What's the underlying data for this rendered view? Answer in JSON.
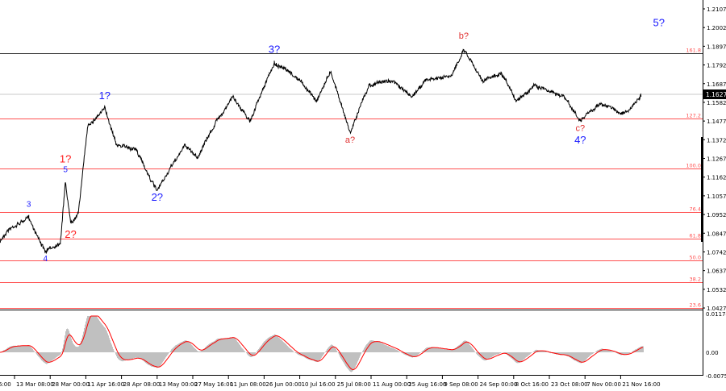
{
  "chart_data": {
    "type": "line",
    "current_price": "1.1627",
    "y_ticks": [
      "1.2107",
      "1.2002",
      "1.1897",
      "1.1792",
      "1.1687",
      "1.1582",
      "1.1477",
      "1.1372",
      "1.1267",
      "1.1162",
      "1.1057",
      "1.0952",
      "1.0847",
      "1.0742",
      "1.0637",
      "1.0532",
      "1.0427"
    ],
    "ylim": [
      1.0427,
      1.2107
    ],
    "x_ticks": [
      {
        "label": "6:00",
        "date": "2020-02-26"
      },
      {
        "label": "13 Mar 08:00",
        "date": "2020-03-13"
      },
      {
        "label": "28 Mar 00:00",
        "date": "2020-03-28"
      },
      {
        "label": "11 Apr 16:00",
        "date": "2020-04-11"
      },
      {
        "label": "28 Apr 08:00",
        "date": "2020-04-28"
      },
      {
        "label": "13 May 00:00",
        "date": "2020-05-13"
      },
      {
        "label": "27 May 16:00",
        "date": "2020-05-27"
      },
      {
        "label": "11 Jun 08:00",
        "date": "2020-06-11"
      },
      {
        "label": "26 Jun 00:00",
        "date": "2020-06-26"
      },
      {
        "label": "10 Jul 16:00",
        "date": "2020-07-10"
      },
      {
        "label": "25 Jul 08:00",
        "date": "2020-07-25"
      },
      {
        "label": "11 Aug 00:00",
        "date": "2020-08-11"
      },
      {
        "label": "25 Aug 16:00",
        "date": "2020-08-25"
      },
      {
        "label": "9 Sep 08:00",
        "date": "2020-09-09"
      },
      {
        "label": "24 Sep 00:00",
        "date": "2020-09-24"
      },
      {
        "label": "8 Oct 16:00",
        "date": "2020-10-08"
      },
      {
        "label": "23 Oct 08:00",
        "date": "2020-10-23"
      },
      {
        "label": "7 Nov 00:00",
        "date": "2020-11-07"
      },
      {
        "label": "21 Nov 16:00",
        "date": "2020-11-21"
      }
    ],
    "price_path": [
      [
        "2020-03-07",
        1.0798
      ],
      [
        "2020-03-10",
        1.0866
      ],
      [
        "2020-03-19",
        1.0934
      ],
      [
        "2020-03-24",
        1.0798
      ],
      [
        "2020-03-26",
        1.074
      ],
      [
        "2020-04-01",
        1.0798
      ],
      [
        "2020-04-03",
        1.1138
      ],
      [
        "2020-04-05",
        1.0912
      ],
      [
        "2020-04-08",
        1.0957
      ],
      [
        "2020-04-12",
        1.1455
      ],
      [
        "2020-04-20",
        1.1546
      ],
      [
        "2020-04-26",
        1.1342
      ],
      [
        "2020-05-04",
        1.132
      ],
      [
        "2020-05-13",
        1.1079
      ],
      [
        "2020-05-18",
        1.1206
      ],
      [
        "2020-05-24",
        1.1342
      ],
      [
        "2020-05-29",
        1.1274
      ],
      [
        "2020-06-06",
        1.1478
      ],
      [
        "2020-06-13",
        1.1614
      ],
      [
        "2020-06-20",
        1.1478
      ],
      [
        "2020-06-25",
        1.1637
      ],
      [
        "2020-06-30",
        1.1804
      ],
      [
        "2020-07-10",
        1.1705
      ],
      [
        "2020-07-17",
        1.1591
      ],
      [
        "2020-07-23",
        1.1759
      ],
      [
        "2020-07-28",
        1.1568
      ],
      [
        "2020-08-01",
        1.141
      ],
      [
        "2020-08-10",
        1.1682
      ],
      [
        "2020-08-19",
        1.1705
      ],
      [
        "2020-08-27",
        1.1614
      ],
      [
        "2020-09-02",
        1.1705
      ],
      [
        "2020-09-13",
        1.1727
      ],
      [
        "2020-09-18",
        1.1885
      ],
      [
        "2020-09-26",
        1.1705
      ],
      [
        "2020-10-03",
        1.1741
      ],
      [
        "2020-10-09",
        1.1591
      ],
      [
        "2020-10-17",
        1.1682
      ],
      [
        "2020-10-29",
        1.1614
      ],
      [
        "2020-11-05",
        1.1478
      ],
      [
        "2020-11-13",
        1.1578
      ],
      [
        "2020-11-21",
        1.1523
      ],
      [
        "2020-11-24",
        1.1532
      ],
      [
        "2020-11-29",
        1.1614
      ]
    ],
    "fib_levels": [
      {
        "label": "161.8",
        "price": 1.1857,
        "color": "#333333"
      },
      {
        "label": "127.2",
        "price": 1.1493
      },
      {
        "label": "100.0",
        "price": 1.1211
      },
      {
        "label": "76.4",
        "price": 1.0966
      },
      {
        "label": "61.8",
        "price": 1.0816
      },
      {
        "label": "50.0",
        "price": 1.0693
      },
      {
        "label": "38.2",
        "price": 1.0571
      },
      {
        "label": "23.6",
        "price": 1.0425
      }
    ],
    "reference_line_price": 1.1627,
    "wave_labels": [
      {
        "text": "3",
        "date": "2020-03-19",
        "price": 1.0995,
        "color": "#1a1aff",
        "size": "small"
      },
      {
        "text": "4",
        "date": "2020-03-26",
        "price": 1.069,
        "color": "#1a1aff",
        "size": "small"
      },
      {
        "text": "5",
        "date": "2020-04-03",
        "price": 1.119,
        "color": "#1a1aff",
        "size": "small"
      },
      {
        "text": "1?",
        "date": "2020-04-03",
        "price": 1.1245,
        "color": "#ff1a1a",
        "size": "large"
      },
      {
        "text": "2?",
        "date": "2020-04-05",
        "price": 1.082,
        "color": "#ff1a1a",
        "size": "large"
      },
      {
        "text": "1?",
        "date": "2020-04-20",
        "price": 1.16,
        "color": "#1a1aff",
        "size": "large"
      },
      {
        "text": "2?",
        "date": "2020-05-13",
        "price": 1.103,
        "color": "#1a1aff",
        "size": "large"
      },
      {
        "text": "3?",
        "date": "2020-06-30",
        "price": 1.186,
        "color": "#1a1aff",
        "size": "large"
      },
      {
        "text": "a?",
        "date": "2020-08-01",
        "price": 1.1356,
        "color": "#e03030",
        "size": "medium"
      },
      {
        "text": "b?",
        "date": "2020-09-18",
        "price": 1.194,
        "color": "#e03030",
        "size": "medium"
      },
      {
        "text": "c?",
        "date": "2020-11-05",
        "price": 1.142,
        "color": "#e03030",
        "size": "medium"
      },
      {
        "text": "4?",
        "date": "2020-11-05",
        "price": 1.135,
        "color": "#1a1aff",
        "size": "large"
      },
      {
        "text": "5?",
        "date": "2020-12-06",
        "price": 1.201,
        "color": "#1a1aff",
        "size": "large"
      }
    ],
    "oscillator": {
      "y_ticks": [
        "0.01174",
        "0.00",
        "-0.00759"
      ],
      "ylim": [
        -0.00759,
        0.01174
      ],
      "histogram_color": "#c0c0c0",
      "signal_color": "#ff0000"
    },
    "colors": {
      "price": "#000000",
      "fib": "#ff5050",
      "ref_line": "#c0c0c0"
    }
  }
}
